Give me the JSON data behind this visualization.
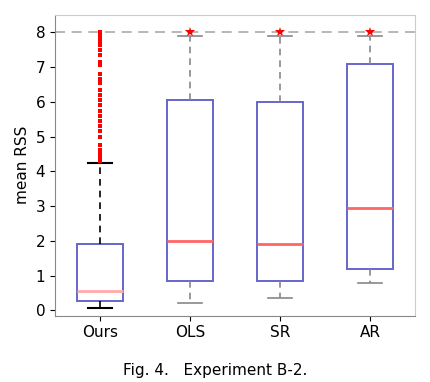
{
  "categories": [
    "Ours",
    "OLS",
    "SR",
    "AR"
  ],
  "box_edge_color": "#6666cc",
  "box_face_color": "white",
  "median_color_ours": "#ffaaaa",
  "median_color_others": "#ff6666",
  "whisker_color_ours": "black",
  "whisker_color_others": "#888888",
  "cap_color_ours": "black",
  "cap_color_others": "#888888",
  "flier_color": "red",
  "dashed_line_y": 8.0,
  "dashed_line_color": "#aaaaaa",
  "ylabel": "mean RSS",
  "caption": "Fig. 4.   Experiment B-2.",
  "ylim": [
    -0.15,
    8.5
  ],
  "yticks": [
    0,
    1,
    2,
    3,
    4,
    5,
    6,
    7,
    8
  ],
  "boxes": [
    {
      "q1": 0.28,
      "median": 0.55,
      "q3": 1.9,
      "whislo": 0.07,
      "whishi": 4.25,
      "fliers": [
        4.3,
        4.38,
        4.45,
        4.55,
        4.62,
        4.75,
        5.0,
        5.15,
        5.3,
        5.45,
        5.6,
        5.75,
        5.9,
        6.05,
        6.2,
        6.35,
        6.55,
        6.65,
        6.8,
        7.05,
        7.15,
        7.35,
        7.5,
        7.65,
        7.75,
        7.85,
        7.92,
        7.97,
        8.0
      ]
    },
    {
      "q1": 0.85,
      "median": 2.0,
      "q3": 6.05,
      "whislo": 0.2,
      "whishi": 7.9,
      "fliers": [
        8.0
      ]
    },
    {
      "q1": 0.85,
      "median": 1.9,
      "q3": 6.0,
      "whislo": 0.35,
      "whishi": 7.9,
      "fliers": [
        8.0
      ]
    },
    {
      "q1": 1.2,
      "median": 2.95,
      "q3": 7.1,
      "whislo": 0.8,
      "whishi": 7.9,
      "fliers": [
        8.0
      ]
    }
  ],
  "fig_width": 4.3,
  "fig_height": 3.82,
  "dpi": 100
}
